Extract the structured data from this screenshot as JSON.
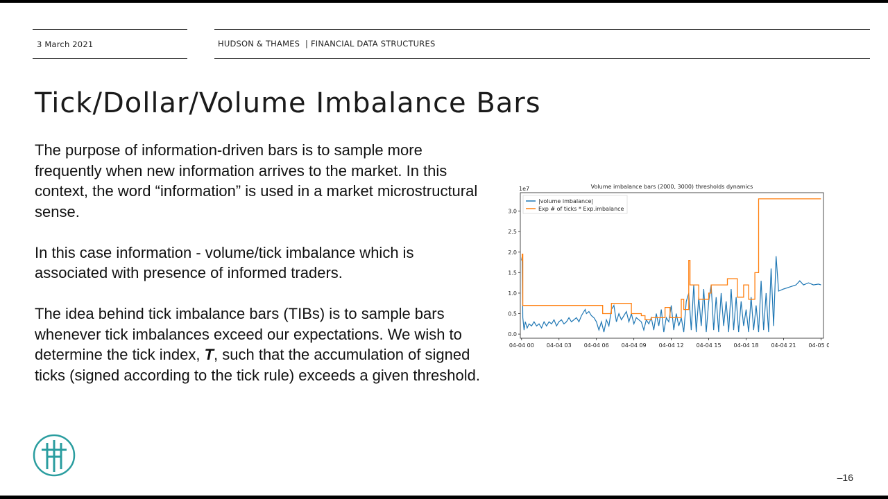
{
  "header": {
    "date": "3 March 2021",
    "brand": "HUDSON & THAMES",
    "section": "| FINANCIAL DATA STRUCTURES"
  },
  "title": "Tick/Dollar/Volume Imbalance Bars",
  "paragraphs": {
    "p1": "The purpose of information-driven bars is to sample more frequently when new information arrives to the market. In this context, the word “information” is used in a market microstructural sense.",
    "p2": "In this case information - volume/tick imbalance which is associated with presence of informed traders.",
    "p3a": "The idea behind tick imbalance bars (TIBs) is to sample bars whenever tick imbalances exceed our expectations. We wish to determine the tick index, ",
    "p3b": "T",
    "p3c": ", such that the accumulation of signed ticks (signed according to the tick rule) exceeds a given threshold."
  },
  "page_number": "16",
  "colors": {
    "series1": "#1f77b4",
    "series2": "#ff7f0e",
    "logo": "#2a9d9f"
  },
  "chart_data": {
    "type": "line",
    "title": "Volume imbalance bars (2000, 3000) thresholds dynamics",
    "scale_label": "1e7",
    "xlabel": "",
    "ylabel": "",
    "xlim": [
      -0.1,
      24.2
    ],
    "ylim": [
      -0.1,
      3.45
    ],
    "x_ticks": [
      0,
      3,
      6,
      9,
      12,
      15,
      18,
      21,
      24
    ],
    "x_tick_labels": [
      "04-04 00",
      "04-04 03",
      "04-04 06",
      "04-04 09",
      "04-04 12",
      "04-04 15",
      "04-04 18",
      "04-04 21",
      "04-05 00"
    ],
    "y_ticks": [
      0.0,
      0.5,
      1.0,
      1.5,
      2.0,
      2.5,
      3.0
    ],
    "y_tick_labels": [
      "0.0",
      "0.5",
      "1.0",
      "1.5",
      "2.0",
      "2.5",
      "3.0"
    ],
    "legend_position": "top-left",
    "grid": false,
    "series": [
      {
        "name": "|volume imbalance|",
        "color": "#1f77b4",
        "x": [
          0.0,
          0.05,
          0.1,
          0.2,
          0.3,
          0.45,
          0.6,
          0.8,
          1.0,
          1.2,
          1.4,
          1.6,
          1.8,
          2.0,
          2.2,
          2.4,
          2.6,
          2.8,
          3.0,
          3.2,
          3.4,
          3.6,
          3.8,
          4.0,
          4.2,
          4.4,
          4.6,
          4.8,
          5.0,
          5.1,
          5.2,
          5.4,
          5.6,
          5.8,
          6.0,
          6.2,
          6.4,
          6.6,
          6.8,
          7.0,
          7.2,
          7.4,
          7.6,
          7.8,
          8.0,
          8.2,
          8.4,
          8.6,
          8.8,
          9.0,
          9.2,
          9.4,
          9.6,
          9.8,
          10.0,
          10.2,
          10.4,
          10.6,
          10.8,
          11.0,
          11.2,
          11.4,
          11.6,
          11.8,
          12.0,
          12.2,
          12.4,
          12.6,
          12.8,
          13.0,
          13.2,
          13.4,
          13.6,
          13.8,
          14.0,
          14.2,
          14.4,
          14.6,
          14.8,
          15.0,
          15.2,
          15.4,
          15.6,
          15.8,
          16.0,
          16.2,
          16.4,
          16.6,
          16.8,
          17.0,
          17.2,
          17.4,
          17.6,
          17.8,
          18.0,
          18.2,
          18.4,
          18.6,
          18.8,
          19.0,
          19.2,
          19.4,
          19.6,
          19.8,
          20.0,
          20.2,
          20.4,
          20.6,
          21.0,
          21.5,
          22.0,
          22.3,
          22.6,
          23.0,
          23.4,
          23.8,
          24.0
        ],
        "y": [
          1.8,
          1.9,
          0.4,
          0.1,
          0.3,
          0.15,
          0.25,
          0.2,
          0.3,
          0.2,
          0.25,
          0.15,
          0.3,
          0.2,
          0.3,
          0.25,
          0.35,
          0.2,
          0.3,
          0.35,
          0.25,
          0.3,
          0.4,
          0.3,
          0.35,
          0.4,
          0.3,
          0.45,
          0.55,
          0.6,
          0.5,
          0.55,
          0.45,
          0.4,
          0.3,
          0.1,
          0.3,
          0.05,
          0.35,
          0.2,
          0.6,
          0.7,
          0.3,
          0.5,
          0.35,
          0.45,
          0.55,
          0.3,
          0.5,
          0.25,
          0.4,
          0.35,
          0.3,
          0.1,
          0.35,
          0.25,
          0.4,
          0.1,
          0.5,
          0.2,
          0.6,
          0.05,
          0.4,
          0.3,
          0.7,
          0.1,
          0.5,
          0.2,
          0.4,
          0.05,
          0.8,
          1.0,
          0.1,
          1.2,
          0.05,
          0.9,
          0.2,
          1.1,
          0.05,
          0.8,
          1.2,
          0.1,
          0.9,
          0.05,
          1.0,
          0.2,
          0.8,
          0.05,
          1.1,
          0.1,
          0.9,
          0.05,
          0.8,
          0.2,
          0.6,
          0.05,
          0.9,
          0.1,
          0.7,
          0.05,
          1.3,
          0.1,
          1.0,
          0.05,
          1.6,
          0.2,
          1.9,
          1.05,
          1.1,
          1.15,
          1.2,
          1.3,
          1.2,
          1.25,
          1.2,
          1.22,
          1.2
        ]
      },
      {
        "name": "Exp # of ticks * Exp.imbalance",
        "color": "#ff7f0e",
        "x": [
          0.0,
          0.05,
          0.1,
          0.15,
          6.5,
          7.2,
          8.8,
          9.6,
          9.9,
          10.4,
          11.5,
          11.9,
          12.8,
          13.0,
          13.4,
          13.5,
          14.2,
          15.0,
          15.2,
          15.6,
          16.5,
          17.3,
          17.8,
          18.2,
          18.7,
          19.0,
          24.0
        ],
        "y": [
          1.8,
          1.95,
          0.7,
          0.7,
          0.5,
          0.75,
          0.5,
          0.45,
          0.35,
          0.4,
          0.65,
          0.4,
          0.85,
          0.6,
          1.8,
          1.2,
          0.85,
          1.0,
          1.2,
          1.2,
          1.35,
          0.9,
          1.2,
          0.85,
          1.5,
          3.3,
          3.3
        ]
      }
    ]
  }
}
